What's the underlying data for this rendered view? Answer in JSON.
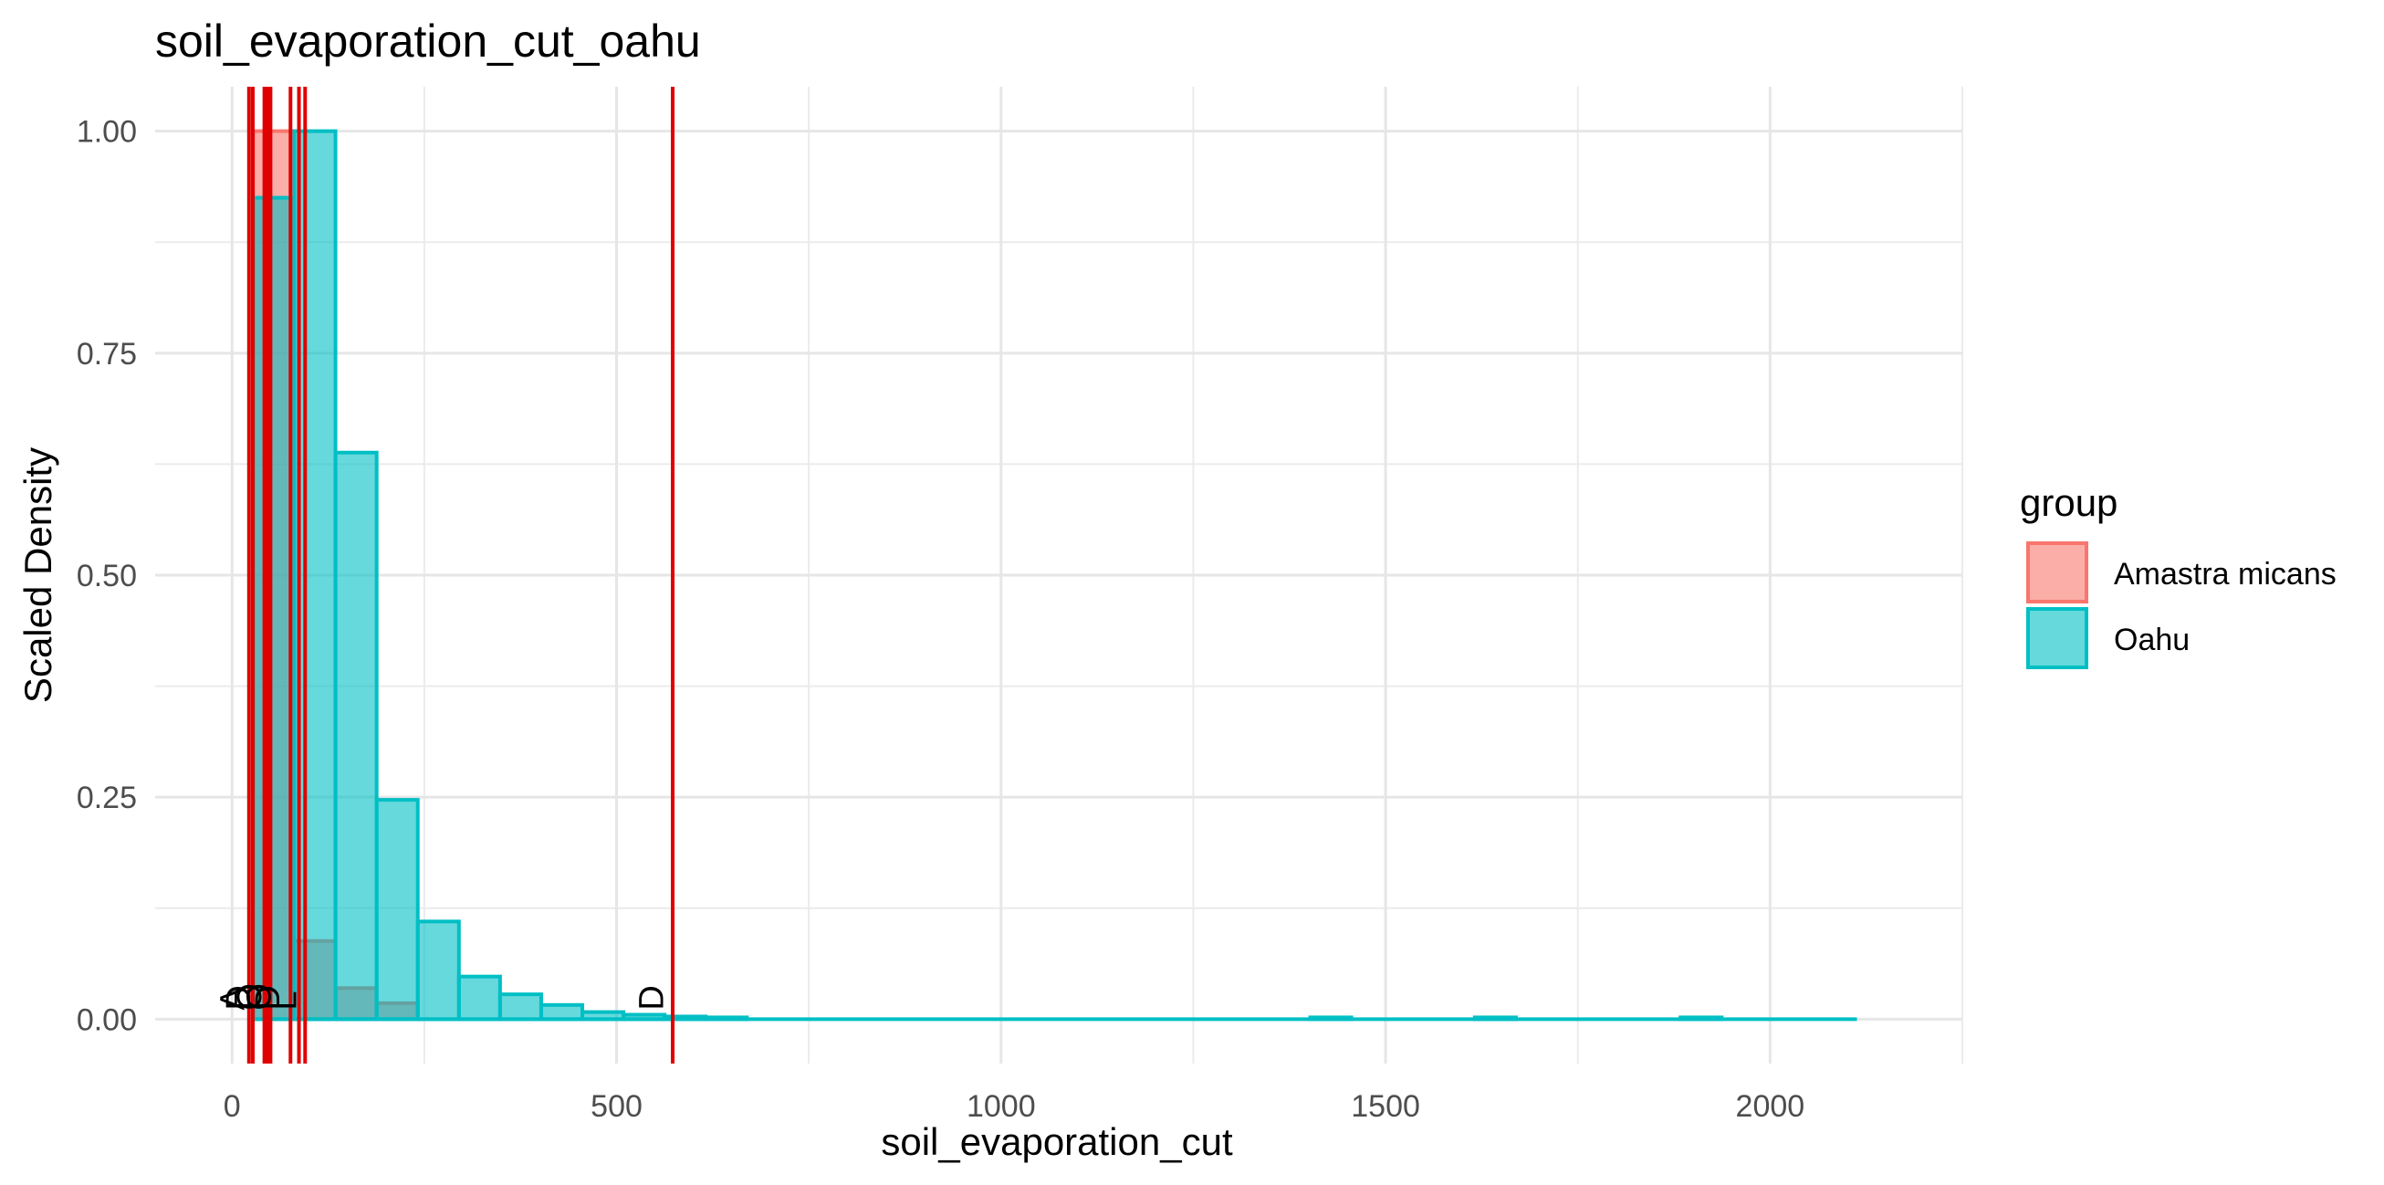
{
  "chart_data": {
    "type": "bar",
    "title": "soil_evaporation_cut_oahu",
    "xlabel": "soil_evaporation_cut",
    "ylabel": "Scaled Density",
    "xlim": [
      -100,
      2250
    ],
    "ylim": [
      -0.05,
      1.05
    ],
    "x_ticks": [
      0,
      500,
      1000,
      1500,
      2000
    ],
    "x_tick_labels": [
      "0",
      "500",
      "1000",
      "1500",
      "2000"
    ],
    "y_ticks": [
      0,
      0.25,
      0.5,
      0.75,
      1.0
    ],
    "y_tick_labels": [
      "0.00",
      "0.25",
      "0.50",
      "0.75",
      "1.00"
    ],
    "grid": true,
    "bin_width": 53.5,
    "legend": {
      "title": "group",
      "position": "right",
      "entries": [
        {
          "label": "Amastra micans",
          "fill": "#F8766D",
          "stroke": "#F8766D"
        },
        {
          "label": "Oahu",
          "fill": "#00BFC4",
          "stroke": "#00BFC4"
        }
      ]
    },
    "series": [
      {
        "name": "Amastra micans",
        "color": "#F8766D",
        "bins": [
          {
            "x0": 27.5,
            "x1": 81.0,
            "value": 1.0
          },
          {
            "x0": 81.0,
            "x1": 134.5,
            "value": 0.088
          },
          {
            "x0": 134.5,
            "x1": 188.0,
            "value": 0.035
          },
          {
            "x0": 188.0,
            "x1": 241.5,
            "value": 0.018
          }
        ]
      },
      {
        "name": "Oahu",
        "color": "#00BFC4",
        "bins": [
          {
            "x0": 27.5,
            "x1": 81.0,
            "value": 0.925
          },
          {
            "x0": 81.0,
            "x1": 134.5,
            "value": 1.0
          },
          {
            "x0": 134.5,
            "x1": 188.0,
            "value": 0.638
          },
          {
            "x0": 188.0,
            "x1": 241.5,
            "value": 0.247
          },
          {
            "x0": 241.5,
            "x1": 295.0,
            "value": 0.11
          },
          {
            "x0": 295.0,
            "x1": 348.5,
            "value": 0.048
          },
          {
            "x0": 348.5,
            "x1": 402.0,
            "value": 0.028
          },
          {
            "x0": 402.0,
            "x1": 455.5,
            "value": 0.016
          },
          {
            "x0": 455.5,
            "x1": 509.0,
            "value": 0.008
          },
          {
            "x0": 509.0,
            "x1": 562.5,
            "value": 0.005
          },
          {
            "x0": 562.5,
            "x1": 616.0,
            "value": 0.003
          },
          {
            "x0": 616.0,
            "x1": 669.5,
            "value": 0.002
          },
          {
            "x0": 1402.0,
            "x1": 1455.5,
            "value": 0.002
          },
          {
            "x0": 1616.0,
            "x1": 1669.5,
            "value": 0.002
          },
          {
            "x0": 1883.5,
            "x1": 1937.0,
            "value": 0.002
          }
        ],
        "baseline_range": [
          27.5,
          2113
        ]
      }
    ],
    "vlines": {
      "color": "#E00000",
      "x": [
        22,
        27,
        42,
        46,
        50,
        76,
        87,
        95,
        573
      ]
    },
    "annotations": [
      {
        "text": "A",
        "x": 0,
        "y": 0.01
      },
      {
        "text": "D",
        "x": 8,
        "y": 0.01
      },
      {
        "text": "O",
        "x": 22,
        "y": 0.01
      },
      {
        "text": "O",
        "x": 35,
        "y": 0.01
      },
      {
        "text": "D",
        "x": 46,
        "y": 0.01
      },
      {
        "text": "L",
        "x": 68,
        "y": 0.01
      },
      {
        "text": "D",
        "x": 545,
        "y": 0.01
      }
    ]
  }
}
